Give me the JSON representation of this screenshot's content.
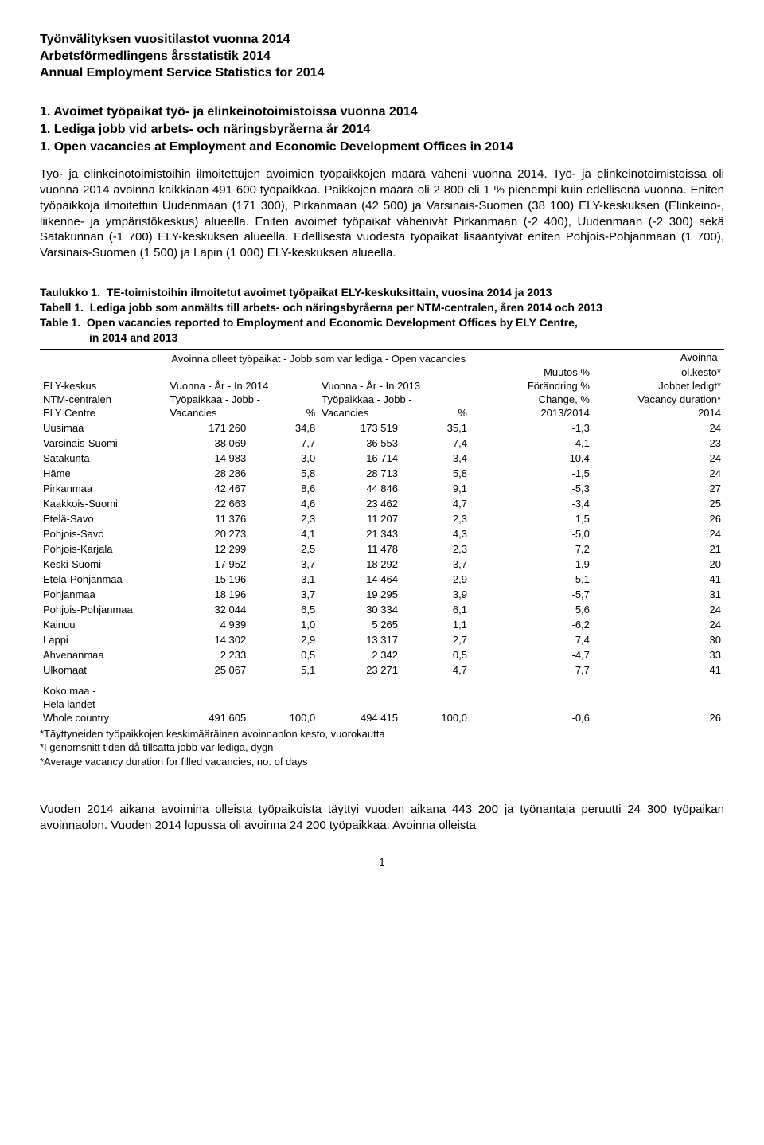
{
  "titles": {
    "fi": "Työnvälityksen vuositilastot vuonna 2014",
    "sv": "Arbetsförmedlingens årsstatistik 2014",
    "en": "Annual Employment Service Statistics for 2014"
  },
  "section_heads": {
    "fi": "1. Avoimet työpaikat työ- ja elinkeinotoimistoissa vuonna 2014",
    "sv": "1. Lediga jobb vid arbets- och näringsbyråerna år 2014",
    "en": "1. Open vacancies at Employment and Economic Development Offices in 2014"
  },
  "body": "Työ- ja elinkeinotoimistoihin ilmoitettujen avoimien työpaikkojen määrä väheni vuonna 2014. Työ- ja elinkeinotoimistoissa oli vuonna 2014 avoinna kaikkiaan 491 600 työpaikkaa. Paikkojen määrä oli 2 800 eli 1 % pienempi kuin edellisenä vuonna. Eniten työpaikkoja ilmoitettiin Uudenmaan (171 300), Pirkanmaan (42 500) ja Varsinais-Suomen (38 100) ELY-keskuksen (Elinkeino-, liikenne- ja ympäristökeskus) alueella. Eniten avoimet työpaikat vähenivät Pirkanmaan (-2 400), Uudenmaan (-2 300) sekä Satakunnan (-1 700) ELY-keskuksen alueella. Edellisestä vuodesta työpaikat lisääntyivät eniten Pohjois-Pohjanmaan (1 700), Varsinais-Suomen (1 500) ja Lapin (1 000) ELY-keskuksen alueella.",
  "table_titles": {
    "fi_a": "Taulukko 1.",
    "fi_b": "TE-toimistoihin ilmoitetut avoimet työpaikat ELY-keskuksittain, vuosina 2014 ja 2013",
    "sv_a": "Tabell 1.",
    "sv_b": "Lediga jobb som anmälts till arbets- och näringsbyråerna per NTM-centralen, åren 2014 och 2013",
    "en_a": "Table 1.",
    "en_b": "Open vacancies reported to Employment and Economic Development Offices by ELY Centre,",
    "en_c": "in 2014 and 2013"
  },
  "super_header": "Avoinna olleet työpaikat - Jobb som var lediga - Open vacancies",
  "headers": {
    "h1a": "ELY-keskus",
    "h1b": "NTM-centralen",
    "h1c": "ELY Centre",
    "h2a": "Vuonna - År - In 2014",
    "h2b": "Työpaikkaa - Jobb -",
    "h2c": "Vacancies",
    "h3": "%",
    "h4a": "Vuonna - År - In 2013",
    "h4b": "Työpaikkaa - Jobb -",
    "h4c": "Vacancies",
    "h5": "%",
    "h6a": "Muutos %",
    "h6b": "Förändring %",
    "h6c": "Change, %",
    "h6d": "2013/2014",
    "h7a": "Avoinna-",
    "h7b": "ol.kesto*",
    "h7c": "Jobbet ledigt*",
    "h7d": "Vacancy duration*",
    "h7e": "2014"
  },
  "rows": [
    {
      "region": "Uusimaa",
      "v1": "171 260",
      "p1": "34,8",
      "v2": "173 519",
      "p2": "35,1",
      "chg": "-1,3",
      "dur": "24"
    },
    {
      "region": "Varsinais-Suomi",
      "v1": "38 069",
      "p1": "7,7",
      "v2": "36 553",
      "p2": "7,4",
      "chg": "4,1",
      "dur": "23"
    },
    {
      "region": "Satakunta",
      "v1": "14 983",
      "p1": "3,0",
      "v2": "16 714",
      "p2": "3,4",
      "chg": "-10,4",
      "dur": "24"
    },
    {
      "region": "Häme",
      "v1": "28 286",
      "p1": "5,8",
      "v2": "28 713",
      "p2": "5,8",
      "chg": "-1,5",
      "dur": "24"
    },
    {
      "region": "Pirkanmaa",
      "v1": "42 467",
      "p1": "8,6",
      "v2": "44 846",
      "p2": "9,1",
      "chg": "-5,3",
      "dur": "27"
    },
    {
      "region": "Kaakkois-Suomi",
      "v1": "22 663",
      "p1": "4,6",
      "v2": "23 462",
      "p2": "4,7",
      "chg": "-3,4",
      "dur": "25"
    },
    {
      "region": "Etelä-Savo",
      "v1": "11 376",
      "p1": "2,3",
      "v2": "11 207",
      "p2": "2,3",
      "chg": "1,5",
      "dur": "26"
    },
    {
      "region": "Pohjois-Savo",
      "v1": "20 273",
      "p1": "4,1",
      "v2": "21 343",
      "p2": "4,3",
      "chg": "-5,0",
      "dur": "24"
    },
    {
      "region": "Pohjois-Karjala",
      "v1": "12 299",
      "p1": "2,5",
      "v2": "11 478",
      "p2": "2,3",
      "chg": "7,2",
      "dur": "21"
    },
    {
      "region": "Keski-Suomi",
      "v1": "17 952",
      "p1": "3,7",
      "v2": "18 292",
      "p2": "3,7",
      "chg": "-1,9",
      "dur": "20"
    },
    {
      "region": "Etelä-Pohjanmaa",
      "v1": "15 196",
      "p1": "3,1",
      "v2": "14 464",
      "p2": "2,9",
      "chg": "5,1",
      "dur": "41"
    },
    {
      "region": "Pohjanmaa",
      "v1": "18 196",
      "p1": "3,7",
      "v2": "19 295",
      "p2": "3,9",
      "chg": "-5,7",
      "dur": "31"
    },
    {
      "region": "Pohjois-Pohjanmaa",
      "v1": "32 044",
      "p1": "6,5",
      "v2": "30 334",
      "p2": "6,1",
      "chg": "5,6",
      "dur": "24"
    },
    {
      "region": "Kainuu",
      "v1": "4 939",
      "p1": "1,0",
      "v2": "5 265",
      "p2": "1,1",
      "chg": "-6,2",
      "dur": "24"
    },
    {
      "region": "Lappi",
      "v1": "14 302",
      "p1": "2,9",
      "v2": "13 317",
      "p2": "2,7",
      "chg": "7,4",
      "dur": "30"
    },
    {
      "region": "Ahvenanmaa",
      "v1": "2 233",
      "p1": "0,5",
      "v2": "2 342",
      "p2": "0,5",
      "chg": "-4,7",
      "dur": "33"
    },
    {
      "region": "Ulkomaat",
      "v1": "25 067",
      "p1": "5,1",
      "v2": "23 271",
      "p2": "4,7",
      "chg": "7,7",
      "dur": "41"
    }
  ],
  "total_labels": {
    "fi": "Koko maa -",
    "sv": "Hela landet -",
    "en": "Whole country"
  },
  "total": {
    "v1": "491 605",
    "p1": "100,0",
    "v2": "494 415",
    "p2": "100,0",
    "chg": "-0,6",
    "dur": "26"
  },
  "footnotes": {
    "fi": "*Täyttyneiden työpaikkojen keskimääräinen avoinnaolon kesto, vuorokautta",
    "sv": "*I genomsnitt tiden då tillsatta jobb var lediga, dygn",
    "en": "*Average vacancy duration for filled vacancies, no. of days"
  },
  "closing": "Vuoden 2014 aikana avoimina olleista työpaikoista täyttyi vuoden aikana 443 200 ja työnantaja peruutti 24 300 työpaikan avoinnaolon. Vuoden 2014 lopussa oli avoinna 24 200 työpaikkaa. Avoinna olleista",
  "page_num": "1"
}
